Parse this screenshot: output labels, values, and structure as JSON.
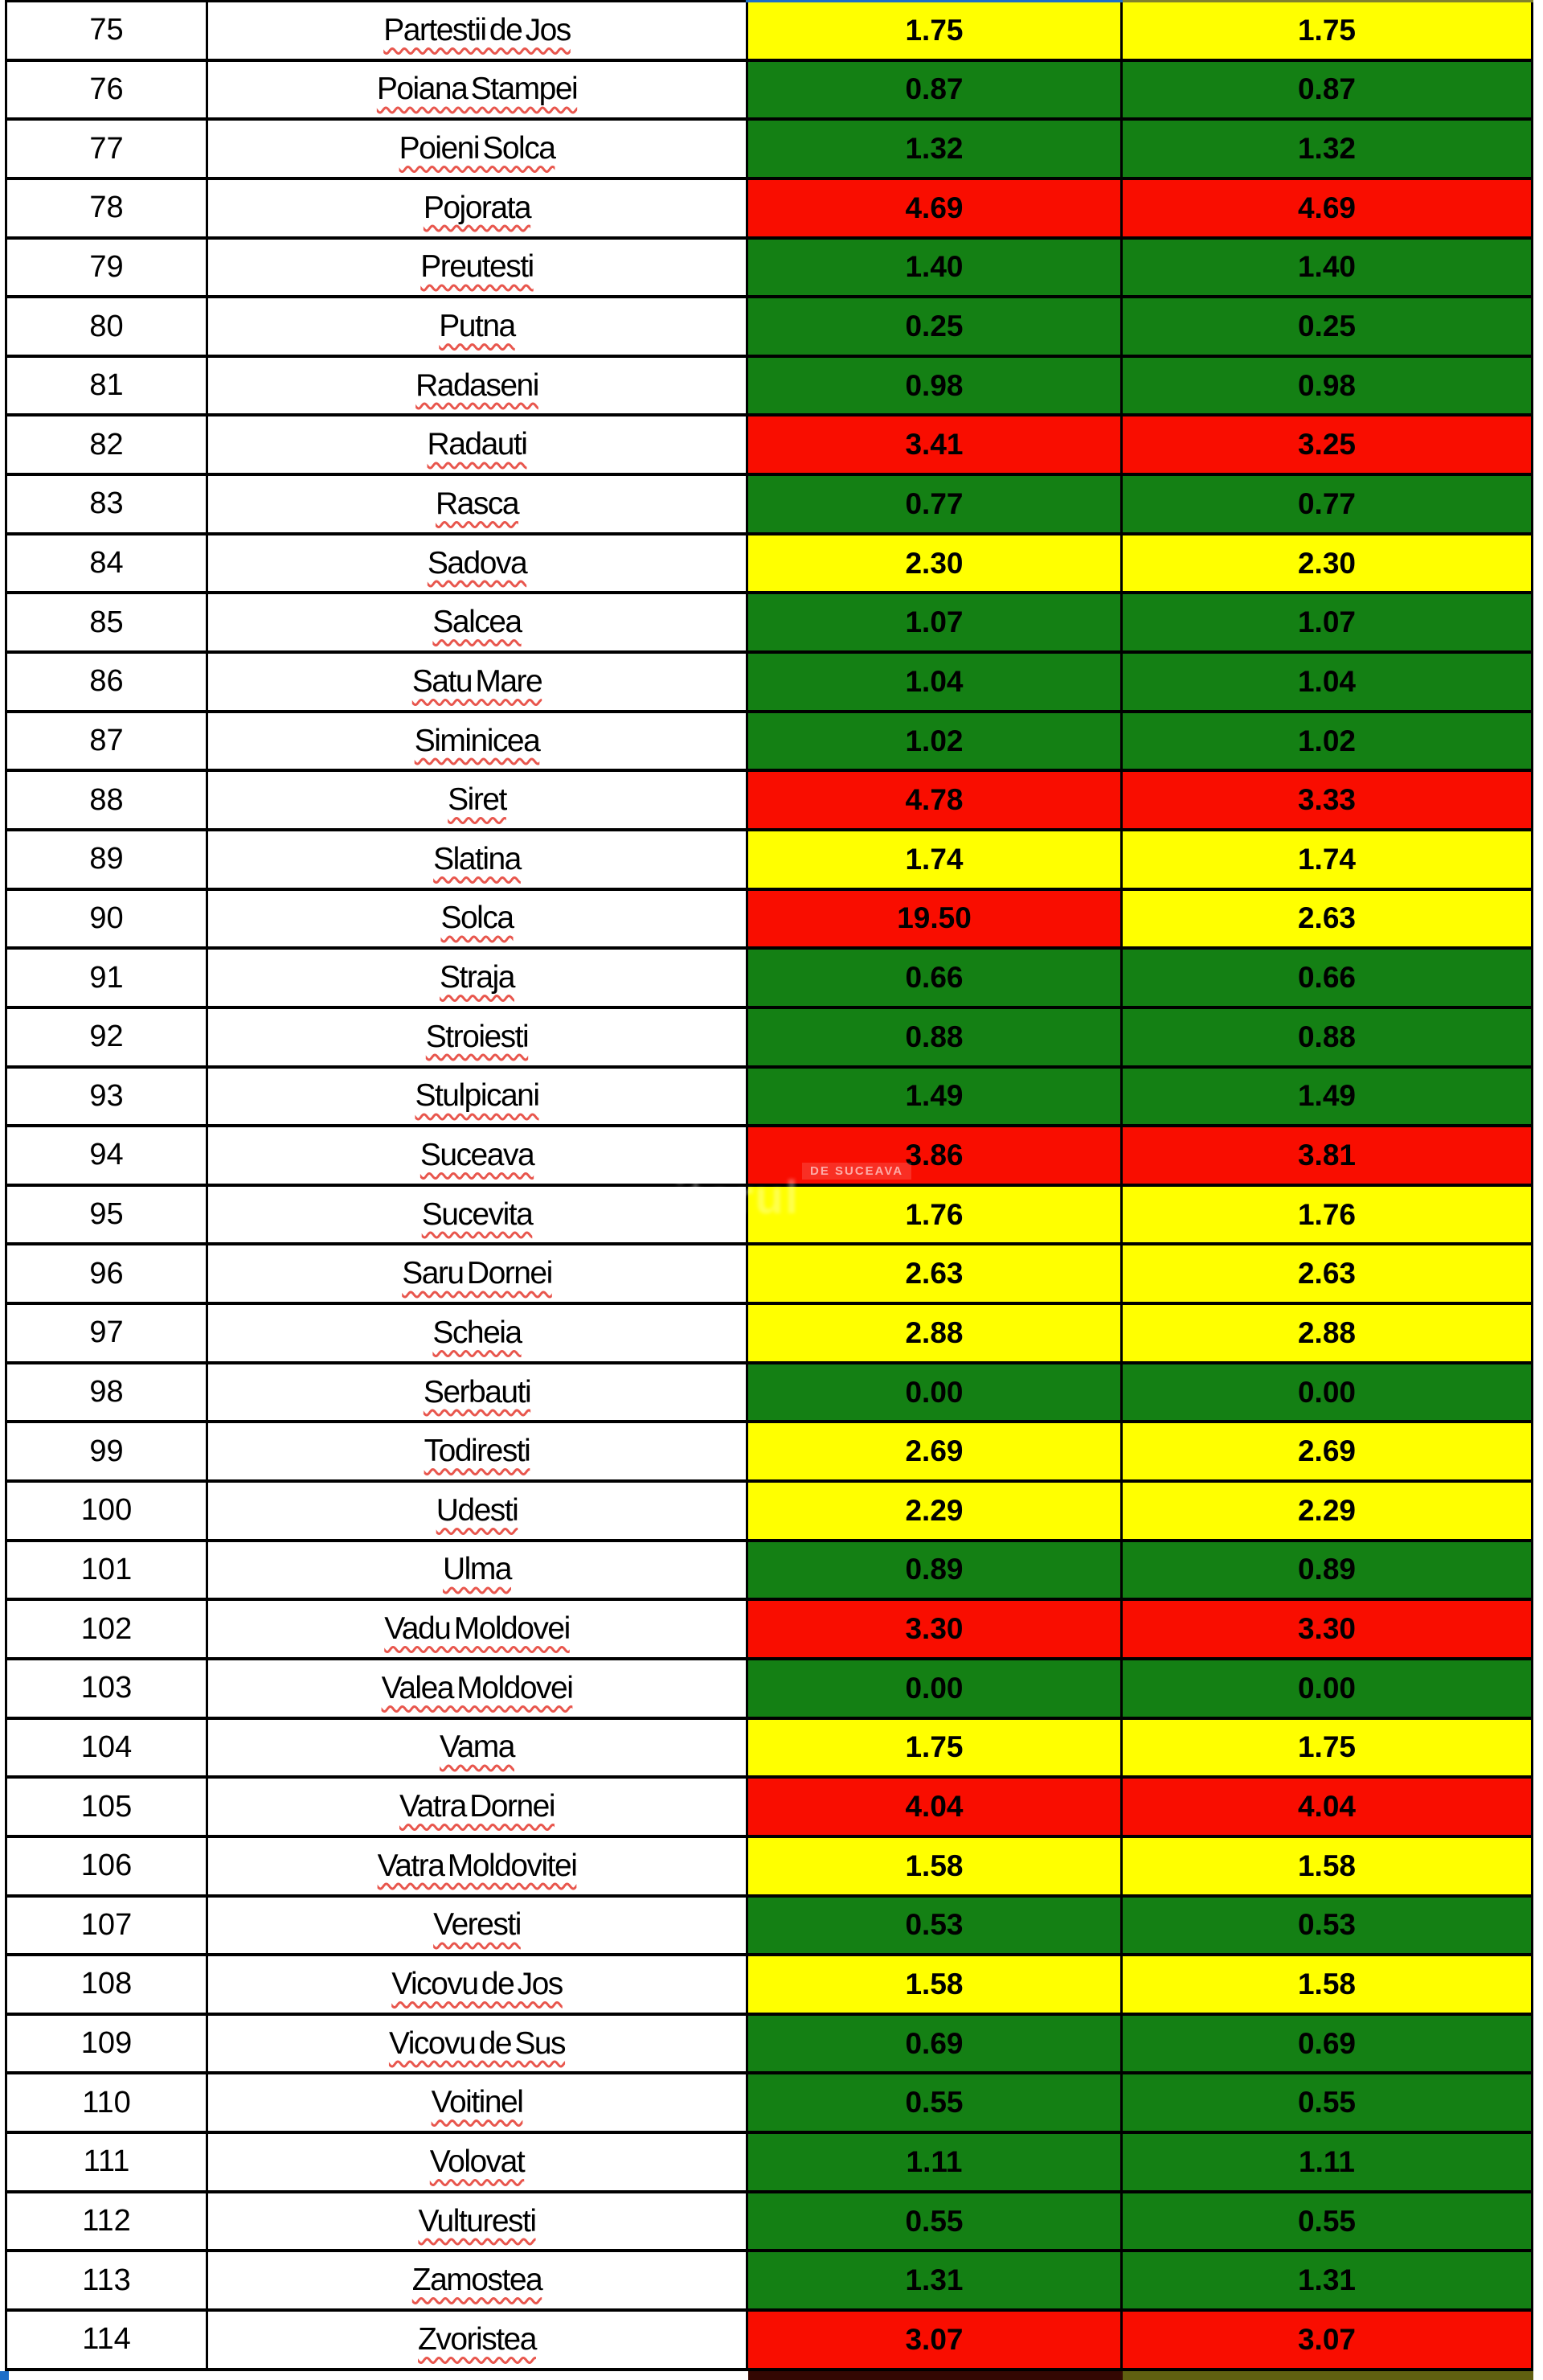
{
  "chart_data": {
    "type": "table",
    "rows": [
      {
        "num": "75",
        "name": "Partestii de Jos",
        "v1": "1.75",
        "c1": "yellow",
        "v2": "1.75",
        "c2": "yellow"
      },
      {
        "num": "76",
        "name": "Poiana Stampei",
        "v1": "0.87",
        "c1": "green",
        "v2": "0.87",
        "c2": "green"
      },
      {
        "num": "77",
        "name": "Poieni Solca",
        "v1": "1.32",
        "c1": "green",
        "v2": "1.32",
        "c2": "green"
      },
      {
        "num": "78",
        "name": "Pojorata",
        "v1": "4.69",
        "c1": "red",
        "v2": "4.69",
        "c2": "red"
      },
      {
        "num": "79",
        "name": "Preutesti",
        "v1": "1.40",
        "c1": "green",
        "v2": "1.40",
        "c2": "green"
      },
      {
        "num": "80",
        "name": "Putna",
        "v1": "0.25",
        "c1": "green",
        "v2": "0.25",
        "c2": "green"
      },
      {
        "num": "81",
        "name": "Radaseni",
        "v1": "0.98",
        "c1": "green",
        "v2": "0.98",
        "c2": "green"
      },
      {
        "num": "82",
        "name": "Radauti",
        "v1": "3.41",
        "c1": "red",
        "v2": "3.25",
        "c2": "red"
      },
      {
        "num": "83",
        "name": "Rasca",
        "v1": "0.77",
        "c1": "green",
        "v2": "0.77",
        "c2": "green"
      },
      {
        "num": "84",
        "name": "Sadova",
        "v1": "2.30",
        "c1": "yellow",
        "v2": "2.30",
        "c2": "yellow"
      },
      {
        "num": "85",
        "name": "Salcea",
        "v1": "1.07",
        "c1": "green",
        "v2": "1.07",
        "c2": "green"
      },
      {
        "num": "86",
        "name": "Satu Mare",
        "v1": "1.04",
        "c1": "green",
        "v2": "1.04",
        "c2": "green"
      },
      {
        "num": "87",
        "name": "Siminicea",
        "v1": "1.02",
        "c1": "green",
        "v2": "1.02",
        "c2": "green"
      },
      {
        "num": "88",
        "name": "Siret",
        "v1": "4.78",
        "c1": "red",
        "v2": "3.33",
        "c2": "red"
      },
      {
        "num": "89",
        "name": "Slatina",
        "v1": "1.74",
        "c1": "yellow",
        "v2": "1.74",
        "c2": "yellow"
      },
      {
        "num": "90",
        "name": "Solca",
        "v1": "19.50",
        "c1": "red",
        "v2": "2.63",
        "c2": "yellow"
      },
      {
        "num": "91",
        "name": "Straja",
        "v1": "0.66",
        "c1": "green",
        "v2": "0.66",
        "c2": "green"
      },
      {
        "num": "92",
        "name": "Stroiesti",
        "v1": "0.88",
        "c1": "green",
        "v2": "0.88",
        "c2": "green"
      },
      {
        "num": "93",
        "name": "Stulpicani",
        "v1": "1.49",
        "c1": "green",
        "v2": "1.49",
        "c2": "green"
      },
      {
        "num": "94",
        "name": "Suceava",
        "v1": "3.86",
        "c1": "red",
        "v2": "3.81",
        "c2": "red"
      },
      {
        "num": "95",
        "name": "Sucevita",
        "v1": "1.76",
        "c1": "yellow",
        "v2": "1.76",
        "c2": "yellow"
      },
      {
        "num": "96",
        "name": "Saru Dornei",
        "v1": "2.63",
        "c1": "yellow",
        "v2": "2.63",
        "c2": "yellow"
      },
      {
        "num": "97",
        "name": "Scheia",
        "v1": "2.88",
        "c1": "yellow",
        "v2": "2.88",
        "c2": "yellow"
      },
      {
        "num": "98",
        "name": "Serbauti",
        "v1": "0.00",
        "c1": "green",
        "v2": "0.00",
        "c2": "green"
      },
      {
        "num": "99",
        "name": "Todiresti",
        "v1": "2.69",
        "c1": "yellow",
        "v2": "2.69",
        "c2": "yellow"
      },
      {
        "num": "100",
        "name": "Udesti",
        "v1": "2.29",
        "c1": "yellow",
        "v2": "2.29",
        "c2": "yellow"
      },
      {
        "num": "101",
        "name": "Ulma",
        "v1": "0.89",
        "c1": "green",
        "v2": "0.89",
        "c2": "green"
      },
      {
        "num": "102",
        "name": "Vadu Moldovei",
        "v1": "3.30",
        "c1": "red",
        "v2": "3.30",
        "c2": "red"
      },
      {
        "num": "103",
        "name": "Valea Moldovei",
        "v1": "0.00",
        "c1": "green",
        "v2": "0.00",
        "c2": "green"
      },
      {
        "num": "104",
        "name": "Vama",
        "v1": "1.75",
        "c1": "yellow",
        "v2": "1.75",
        "c2": "yellow"
      },
      {
        "num": "105",
        "name": "Vatra Dornei",
        "v1": "4.04",
        "c1": "red",
        "v2": "4.04",
        "c2": "red"
      },
      {
        "num": "106",
        "name": "Vatra Moldovitei",
        "v1": "1.58",
        "c1": "yellow",
        "v2": "1.58",
        "c2": "yellow"
      },
      {
        "num": "107",
        "name": "Veresti",
        "v1": "0.53",
        "c1": "green",
        "v2": "0.53",
        "c2": "green"
      },
      {
        "num": "108",
        "name": "Vicovu de Jos",
        "v1": "1.58",
        "c1": "yellow",
        "v2": "1.58",
        "c2": "yellow"
      },
      {
        "num": "109",
        "name": "Vicovu de Sus",
        "v1": "0.69",
        "c1": "green",
        "v2": "0.69",
        "c2": "green"
      },
      {
        "num": "110",
        "name": "Voitinel",
        "v1": "0.55",
        "c1": "green",
        "v2": "0.55",
        "c2": "green"
      },
      {
        "num": "111",
        "name": "Volovat",
        "v1": "1.11",
        "c1": "green",
        "v2": "1.11",
        "c2": "green"
      },
      {
        "num": "112",
        "name": "Vulturesti",
        "v1": "0.55",
        "c1": "green",
        "v2": "0.55",
        "c2": "green"
      },
      {
        "num": "113",
        "name": "Zamostea",
        "v1": "1.31",
        "c1": "green",
        "v2": "1.31",
        "c2": "green"
      },
      {
        "num": "114",
        "name": "Zvoristea",
        "v1": "3.07",
        "c1": "red",
        "v2": "3.07",
        "c2": "red"
      }
    ]
  },
  "palette": {
    "green": "#148014",
    "yellow": "#FFFF00",
    "red": "#F90D00",
    "border": "#000000",
    "squiggle": "#E8564D",
    "top_strip_blue": "#1E6EC8",
    "top_strip_olive": "#81812D",
    "bottom_partial_red": "#330702",
    "bottom_partial_olive": "#5F5F10",
    "corner_blue": "#1E6EC8"
  },
  "watermark": {
    "small_text": "DE SUCEAVA",
    "large_text": "itorul"
  }
}
